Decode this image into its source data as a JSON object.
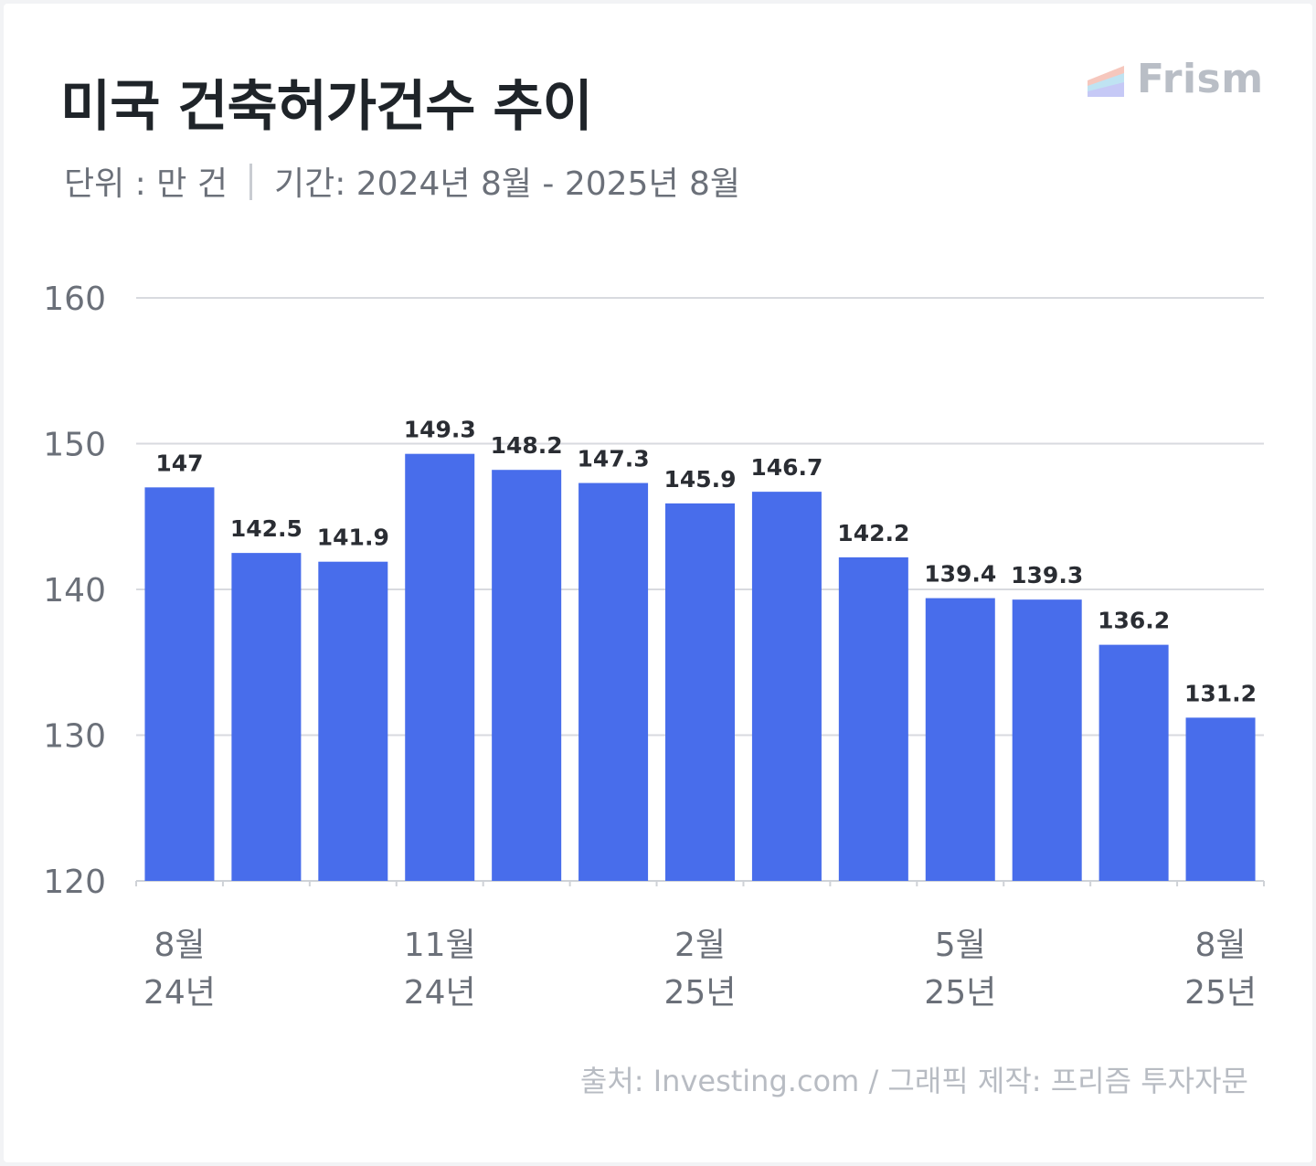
{
  "title": "미국 건축허가건수 추이",
  "subtitle": {
    "unit": "단위 : 만 건",
    "period": "기간: 2024년 8월 - 2025년 8월"
  },
  "brand": {
    "name": "Frism",
    "logo_icon": "frism-logo-icon",
    "logo_colors": [
      "#f6c7bd",
      "#bfe3f2",
      "#c6c9f6"
    ]
  },
  "source": "출처: Investing.com / 그래픽 제작: 프리즘 투자자문",
  "colors": {
    "bar": "#486deb",
    "grid": "#d8dadf",
    "tick_text": "#6b7079",
    "value_text": "#2a2d33"
  },
  "chart_data": {
    "type": "bar",
    "title": "",
    "xlabel": "",
    "ylabel": "",
    "ylim": [
      120,
      160
    ],
    "yticks": [
      120,
      130,
      140,
      150,
      160
    ],
    "grid": true,
    "categories": [
      "2024-08",
      "2024-09",
      "2024-10",
      "2024-11",
      "2024-12",
      "2025-01",
      "2025-02",
      "2025-03",
      "2025-04",
      "2025-05",
      "2025-06",
      "2025-07",
      "2025-08"
    ],
    "values": [
      147,
      142.5,
      141.9,
      149.3,
      148.2,
      147.3,
      145.9,
      146.7,
      142.2,
      139.4,
      139.3,
      136.2,
      131.2
    ],
    "value_labels": [
      "147",
      "142.5",
      "141.9",
      "149.3",
      "148.2",
      "147.3",
      "145.9",
      "146.7",
      "142.2",
      "139.4",
      "139.3",
      "136.2",
      "131.2"
    ],
    "xtick_labels": [
      {
        "index": 0,
        "month": "8월",
        "year": "24년"
      },
      {
        "index": 3,
        "month": "11월",
        "year": "24년"
      },
      {
        "index": 6,
        "month": "2월",
        "year": "25년"
      },
      {
        "index": 9,
        "month": "5월",
        "year": "25년"
      },
      {
        "index": 12,
        "month": "8월",
        "year": "25년"
      }
    ]
  }
}
